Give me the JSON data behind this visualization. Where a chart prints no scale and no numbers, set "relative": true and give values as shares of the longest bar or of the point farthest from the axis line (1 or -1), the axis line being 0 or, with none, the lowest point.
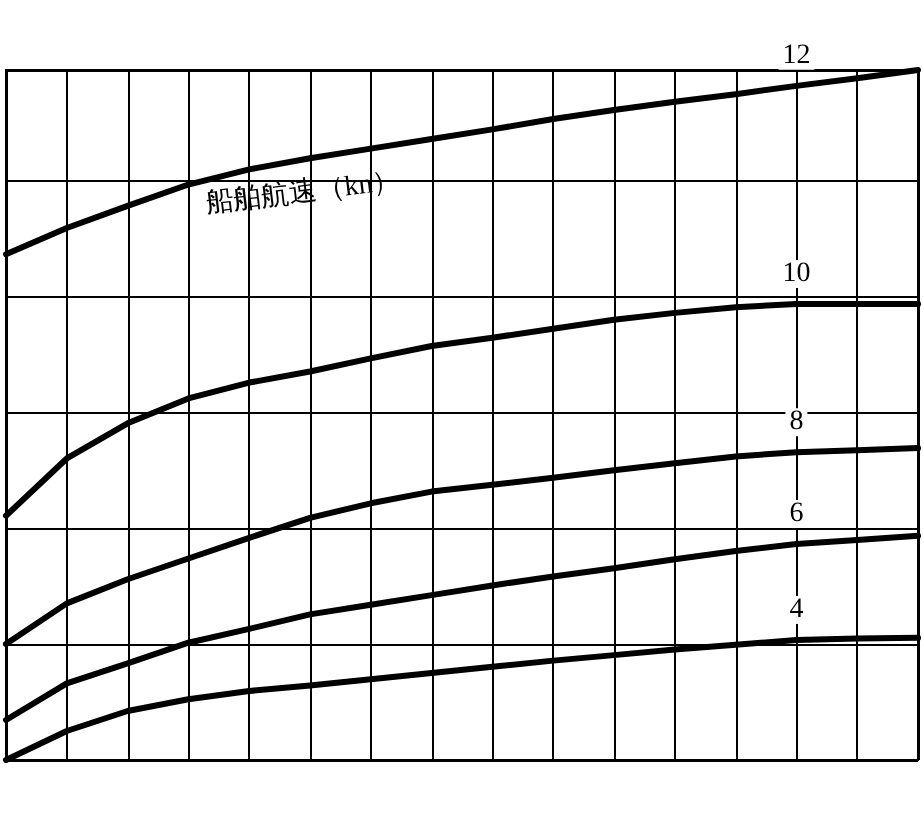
{
  "chart_data": {
    "type": "line",
    "relative": true,
    "grid": true,
    "legend": false,
    "marker": "none",
    "line_style": "solid",
    "categories": [
      null,
      null,
      null,
      null,
      null,
      null,
      null,
      null,
      null,
      null,
      null,
      null,
      null,
      null,
      null,
      null
    ],
    "annotations": [
      "船舶航速（kn）"
    ],
    "series": [
      {
        "name": "12",
        "color": "#000000",
        "values": [
          0.733,
          0.771,
          0.803,
          0.834,
          0.856,
          0.872,
          0.886,
          0.9,
          0.914,
          0.929,
          0.942,
          0.954,
          0.965,
          0.977,
          0.988,
          1
        ]
      },
      {
        "name": "10",
        "color": "#000000",
        "values": [
          0.354,
          0.437,
          0.488,
          0.524,
          0.547,
          0.563,
          0.582,
          0.6,
          0.612,
          0.625,
          0.638,
          0.648,
          0.656,
          0.661,
          0.661,
          0.661
        ]
      },
      {
        "name": "8",
        "color": "#000000",
        "values": [
          0.168,
          0.227,
          0.262,
          0.292,
          0.322,
          0.351,
          0.372,
          0.389,
          0.399,
          0.409,
          0.42,
          0.43,
          0.44,
          0.446,
          0.449,
          0.452
        ]
      },
      {
        "name": "6",
        "color": "#000000",
        "values": [
          0.058,
          0.111,
          0.14,
          0.17,
          0.19,
          0.211,
          0.225,
          0.239,
          0.253,
          0.266,
          0.278,
          0.291,
          0.303,
          0.313,
          0.319,
          0.325
        ]
      },
      {
        "name": "4",
        "color": "#000000",
        "values": [
          0,
          0.042,
          0.071,
          0.088,
          0.1,
          0.108,
          0.117,
          0.126,
          0.135,
          0.144,
          0.152,
          0.16,
          0.167,
          0.174,
          0.176,
          0.177
        ]
      }
    ]
  }
}
